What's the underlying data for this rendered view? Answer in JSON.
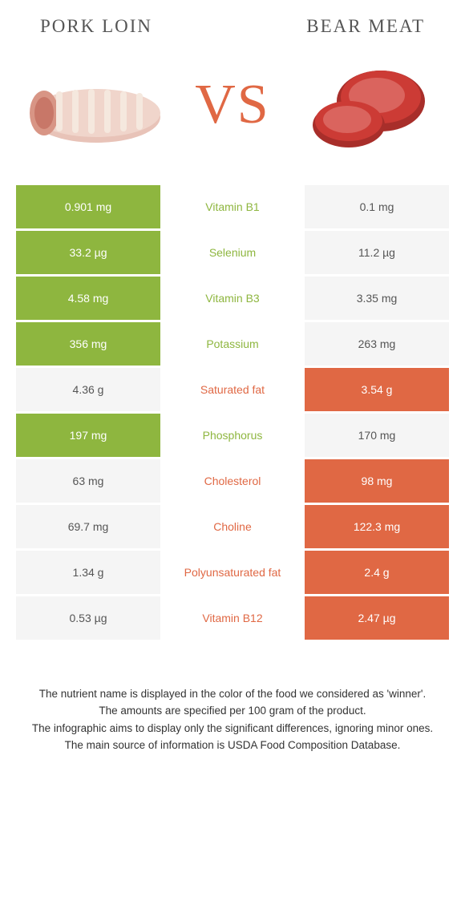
{
  "titles": {
    "left": "Pork loin",
    "right": "Bear meat",
    "vs": "VS"
  },
  "colors": {
    "green": "#8eb63f",
    "orange": "#e06844",
    "lightRow": "#f5f5f5"
  },
  "rows": [
    {
      "label": "Vitamin B1",
      "left": "0.901 mg",
      "right": "0.1 mg",
      "winner": "left"
    },
    {
      "label": "Selenium",
      "left": "33.2 µg",
      "right": "11.2 µg",
      "winner": "left"
    },
    {
      "label": "Vitamin B3",
      "left": "4.58 mg",
      "right": "3.35 mg",
      "winner": "left"
    },
    {
      "label": "Potassium",
      "left": "356 mg",
      "right": "263 mg",
      "winner": "left"
    },
    {
      "label": "Saturated fat",
      "left": "4.36 g",
      "right": "3.54 g",
      "winner": "right"
    },
    {
      "label": "Phosphorus",
      "left": "197 mg",
      "right": "170 mg",
      "winner": "left"
    },
    {
      "label": "Cholesterol",
      "left": "63 mg",
      "right": "98 mg",
      "winner": "right"
    },
    {
      "label": "Choline",
      "left": "69.7 mg",
      "right": "122.3 mg",
      "winner": "right"
    },
    {
      "label": "Polyunsaturated fat",
      "left": "1.34 g",
      "right": "2.4 g",
      "winner": "right"
    },
    {
      "label": "Vitamin B12",
      "left": "0.53 µg",
      "right": "2.47 µg",
      "winner": "right"
    }
  ],
  "footer": {
    "line1": "The nutrient name is displayed in the color of the food we considered as 'winner'.",
    "line2": "The amounts are specified per 100 gram of the product.",
    "line3": "The infographic aims to display only the significant differences, ignoring minor ones.",
    "line4": "The main source of information is USDA Food Composition Database."
  }
}
